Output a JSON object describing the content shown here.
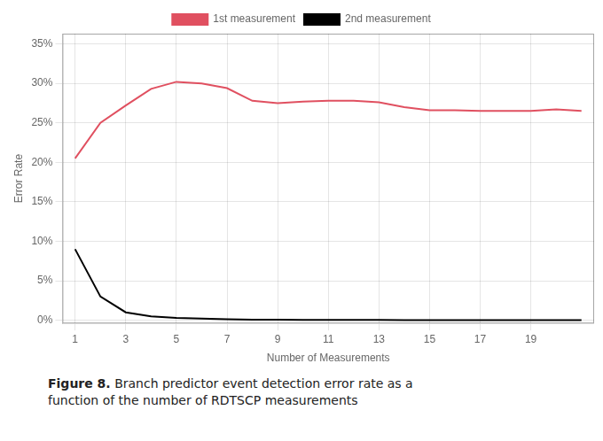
{
  "chart_data": {
    "type": "line",
    "x": [
      1,
      2,
      3,
      4,
      5,
      6,
      7,
      8,
      9,
      10,
      11,
      12,
      13,
      14,
      15,
      16,
      17,
      18,
      19,
      20,
      21
    ],
    "series": [
      {
        "name": "1st measurement",
        "color": "#e05060",
        "values": [
          0.205,
          0.25,
          0.272,
          0.293,
          0.302,
          0.3,
          0.294,
          0.278,
          0.275,
          0.277,
          0.278,
          0.278,
          0.276,
          0.27,
          0.266,
          0.266,
          0.265,
          0.265,
          0.265,
          0.267,
          0.265
        ]
      },
      {
        "name": "2nd measurement",
        "color": "#000000",
        "values": [
          0.09,
          0.03,
          0.01,
          0.005,
          0.003,
          0.002,
          0.0012,
          0.0008,
          0.0006,
          0.0005,
          0.0004,
          0.0003,
          0.0003,
          0.0002,
          0.0002,
          0.0002,
          0.0001,
          0.0001,
          0.0001,
          0.0001,
          0.0001
        ]
      }
    ],
    "xlabel": "Number of Measurements",
    "ylabel": "Error Rate",
    "xlim": [
      0.5,
      21.5
    ],
    "xticks": [
      1,
      3,
      5,
      7,
      9,
      11,
      13,
      15,
      17,
      19
    ],
    "ylim": [
      -0.004,
      0.363
    ],
    "yticks": [
      {
        "value": 0.0,
        "label": "0%"
      },
      {
        "value": 0.05,
        "label": "5%"
      },
      {
        "value": 0.1,
        "label": "10%"
      },
      {
        "value": 0.15,
        "label": "15%"
      },
      {
        "value": 0.2,
        "label": "20%"
      },
      {
        "value": 0.25,
        "label": "25%"
      },
      {
        "value": 0.3,
        "label": "30%"
      },
      {
        "value": 0.35,
        "label": "35%"
      }
    ],
    "grid": true,
    "legend": "top",
    "caption_bold": "Figure 8.",
    "caption": " Branch predictor event detection error rate as a\nfunction of the number of RDTSCP measurements"
  }
}
